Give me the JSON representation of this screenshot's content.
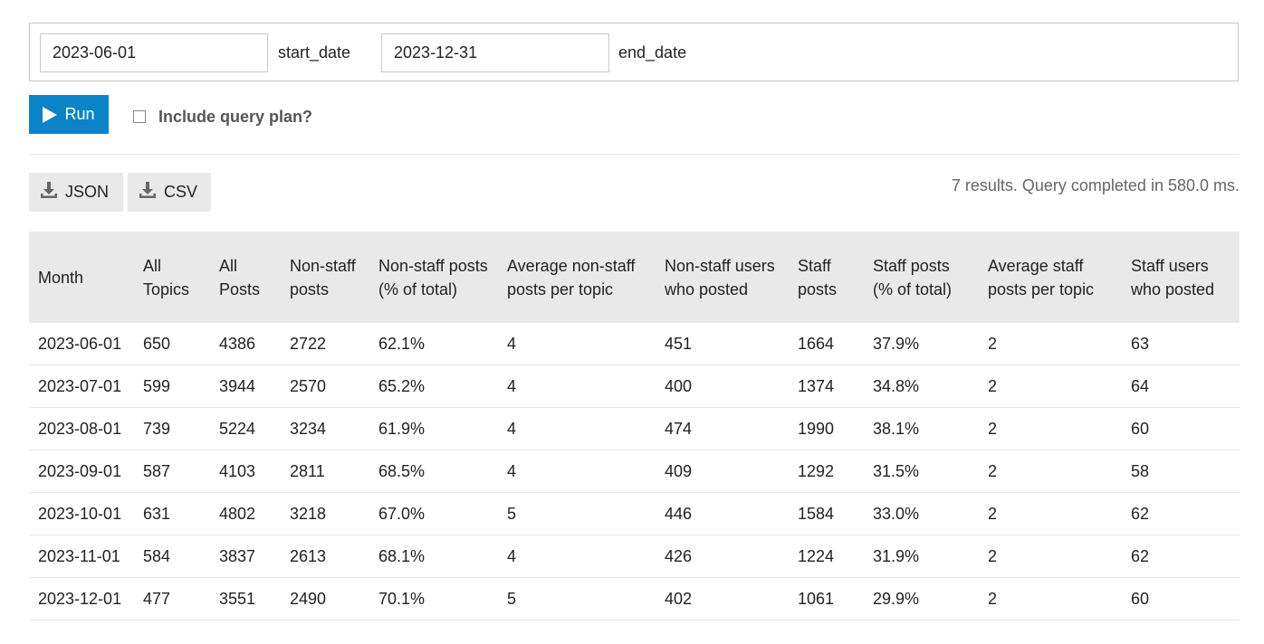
{
  "params": {
    "start_date_value": "2023-06-01",
    "start_date_label": "start_date",
    "end_date_value": "2023-12-31",
    "end_date_label": "end_date"
  },
  "run_button": {
    "label": "Run",
    "icon": "play-icon"
  },
  "query_plan": {
    "label": "Include query plan?",
    "checked": false
  },
  "downloads": {
    "json_label": "JSON",
    "csv_label": "CSV",
    "icon": "download-icon"
  },
  "result_info": "7 results. Query completed in 580.0 ms.",
  "table": {
    "headers": [
      "Month",
      "All Topics",
      "All Posts",
      "Non-staff posts",
      "Non-staff posts (% of total)",
      "Average non-staff posts per topic",
      "Non-staff users who posted",
      "Staff posts",
      "Staff posts (% of total)",
      "Average staff posts per topic",
      "Staff users who posted"
    ],
    "rows": [
      [
        "2023-06-01",
        "650",
        "4386",
        "2722",
        "62.1%",
        "4",
        "451",
        "1664",
        "37.9%",
        "2",
        "63"
      ],
      [
        "2023-07-01",
        "599",
        "3944",
        "2570",
        "65.2%",
        "4",
        "400",
        "1374",
        "34.8%",
        "2",
        "64"
      ],
      [
        "2023-08-01",
        "739",
        "5224",
        "3234",
        "61.9%",
        "4",
        "474",
        "1990",
        "38.1%",
        "2",
        "60"
      ],
      [
        "2023-09-01",
        "587",
        "4103",
        "2811",
        "68.5%",
        "4",
        "409",
        "1292",
        "31.5%",
        "2",
        "58"
      ],
      [
        "2023-10-01",
        "631",
        "4802",
        "3218",
        "67.0%",
        "5",
        "446",
        "1584",
        "33.0%",
        "2",
        "62"
      ],
      [
        "2023-11-01",
        "584",
        "3837",
        "2613",
        "68.1%",
        "4",
        "426",
        "1224",
        "31.9%",
        "2",
        "62"
      ],
      [
        "2023-12-01",
        "477",
        "3551",
        "2490",
        "70.1%",
        "5",
        "402",
        "1061",
        "29.9%",
        "2",
        "60"
      ]
    ]
  },
  "colors": {
    "accent": "#0a84c6",
    "header_bg": "#e9e9e9",
    "button_bg": "#e9e9e9",
    "row_border": "#e6e6e6"
  }
}
